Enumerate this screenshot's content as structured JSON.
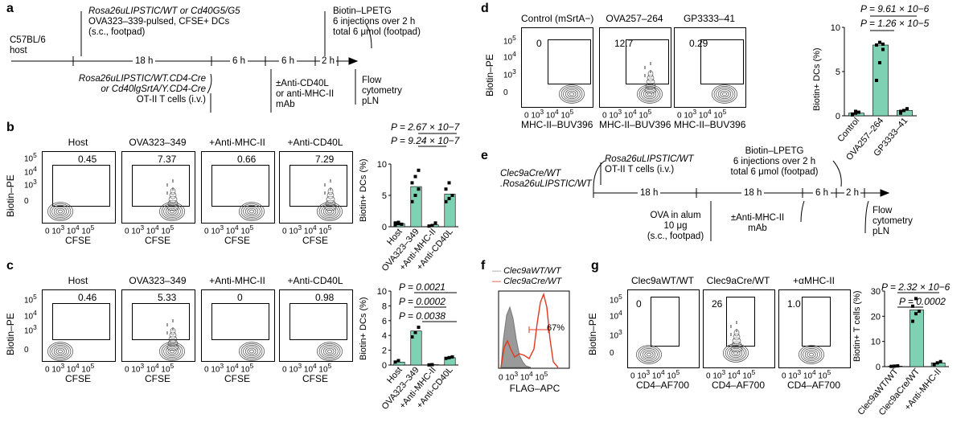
{
  "panels": {
    "a": "a",
    "b": "b",
    "c": "c",
    "d": "d",
    "e": "e",
    "f": "f",
    "g": "g"
  },
  "a": {
    "host": [
      "C57BL/6",
      "host"
    ],
    "dc_line1": "Rosa26uLIPSTIC/WT or Cd40G5/G5",
    "dc_line2": "OVA323–339-pulsed, CFSE+ DCs",
    "dc_line3": "(s.c., footpad)",
    "biotin": [
      "Biotin–LPETG",
      "6 injections over 2 h",
      "total 6 μmol (footpad)"
    ],
    "times": [
      "18 h",
      "6 h",
      "6 h",
      "2 h"
    ],
    "tcells": [
      "Rosa26uLIPSTIC/WT.CD4-Cre",
      "or Cd40lgSrtA/Y.CD4-Cre",
      "OT-II T cells (i.v.)"
    ],
    "mab": [
      "±Anti-CD40L",
      "or anti-MHC-II",
      "mAb"
    ],
    "readout": [
      "Flow",
      "cytometry",
      "pLN"
    ]
  },
  "b": {
    "titles": [
      "Host",
      "OVA323–349",
      "+Anti-MHC-II",
      "+Anti-CD40L"
    ],
    "gates": [
      "0.45",
      "7.37",
      "0.66",
      "7.29"
    ],
    "ylabel": "Biotin–PE",
    "xlabel": "CFSE",
    "bar_ylabel": "Biotin+ DCs (%)",
    "p1": "P = 2.67 × 10−7",
    "p2": "P = 9.24 × 10−7",
    "cats": [
      "Host",
      "OVA323–349",
      "+Anti-MHC-II",
      "+Anti-CD40L"
    ]
  },
  "c": {
    "titles": [
      "Host",
      "OVA323–349",
      "+Anti-MHC-II",
      "+Anti-CD40L"
    ],
    "gates": [
      "0.46",
      "5.33",
      "0",
      "0.98"
    ],
    "ylabel": "Biotin–PE",
    "xlabel": "CFSE",
    "bar_ylabel": "Biotin+ DCs (%)",
    "p1": "P = 0.0021",
    "p2": "P = 0.0002",
    "p3": "P = 0.0038",
    "cats": [
      "Host",
      "OVA323–349",
      "+Anti-MHC-II",
      "+Anti-CD40L"
    ]
  },
  "d": {
    "titles": [
      "Control (mSrtA−)",
      "OVA257–264",
      "GP3333–41"
    ],
    "gates": [
      "0",
      "12.7",
      "0.29"
    ],
    "ylabel": "Biotin–PE",
    "xlabel": "MHC-II–BUV396",
    "bar_ylabel": "Biotin+ DCs (%)",
    "p1": "P = 9.61 × 10−6",
    "p2": "P = 1.26 × 10−5",
    "cats": [
      "Control",
      "OVA257–264",
      "GP3333–41"
    ]
  },
  "e": {
    "mouse": [
      "Clec9aCre/WT",
      ".Rosa26uLIPSTIC/WT"
    ],
    "tcells": [
      "Rosa26uLIPSTIC/WT",
      "OT-II T cells (i.v.)"
    ],
    "biotin": [
      "Biotin–LPETG",
      "6 injections over 2 h",
      "total 6 μmol (footpad)"
    ],
    "times": [
      "18 h",
      "18 h",
      "6 h",
      "2 h"
    ],
    "ova": [
      "OVA in alum",
      "10 μg",
      "(s.c., footpad)"
    ],
    "mab": [
      "±Anti-MHC-II",
      "mAb"
    ],
    "readout": [
      "Flow",
      "cytometry",
      "pLN"
    ]
  },
  "f": {
    "legend1": "Clec9aWT/WT",
    "legend2": "Clec9aCre/WT",
    "gate": "67%",
    "xlabel": "FLAG–APC"
  },
  "g": {
    "titles": [
      "Clec9aWT/WT",
      "Clec9aCre/WT",
      "+αMHC-II"
    ],
    "gates": [
      "0",
      "26",
      "1.0"
    ],
    "ylabel": "Biotin–PE",
    "xlabel": "CD4–AF700",
    "bar_ylabel": "Biotin+ T cells (%)",
    "p1": "P = 2.32 × 10−6",
    "p2": "P = 0.0002",
    "cats": [
      "Clec9aWT/WT",
      "Clec9aCre/WT",
      "+Anti-MHC-II"
    ]
  },
  "colors": {
    "bar": "#7fd1b4",
    "red": "#e03a1e",
    "gray": "#9a9a9a"
  },
  "chart_data": [
    {
      "type": "bar",
      "categories": [
        "Host",
        "OVA323–349",
        "+Anti-MHC-II",
        "+Anti-CD40L"
      ],
      "values": [
        0.5,
        6.4,
        0.3,
        5.2
      ],
      "ylabel": "Biotin+ DCs (%)",
      "ylim": [
        0,
        10
      ],
      "yticks": [
        0,
        5,
        10
      ]
    },
    {
      "type": "bar",
      "categories": [
        "Host",
        "OVA323–349",
        "+Anti-MHC-II",
        "+Anti-CD40L"
      ],
      "values": [
        0.4,
        4.6,
        0.05,
        1.0
      ],
      "ylabel": "Biotin+ DCs (%)",
      "ylim": [
        0,
        10
      ],
      "yticks": [
        0,
        2,
        4,
        6,
        8,
        10
      ]
    },
    {
      "type": "bar",
      "categories": [
        "Control",
        "OVA257–264",
        "GP3333–41"
      ],
      "values": [
        0.3,
        8.0,
        0.6
      ],
      "ylabel": "Biotin+ DCs (%)",
      "ylim": [
        0,
        10
      ],
      "yticks": [
        0,
        5,
        10
      ]
    },
    {
      "type": "bar",
      "categories": [
        "Clec9aWT/WT",
        "Clec9aCre/WT",
        "+Anti-MHC-II"
      ],
      "values": [
        0.2,
        22.5,
        1.5
      ],
      "ylabel": "Biotin+ T cells (%)",
      "ylim": [
        0,
        30
      ],
      "yticks": [
        0,
        10,
        20,
        30
      ]
    }
  ]
}
